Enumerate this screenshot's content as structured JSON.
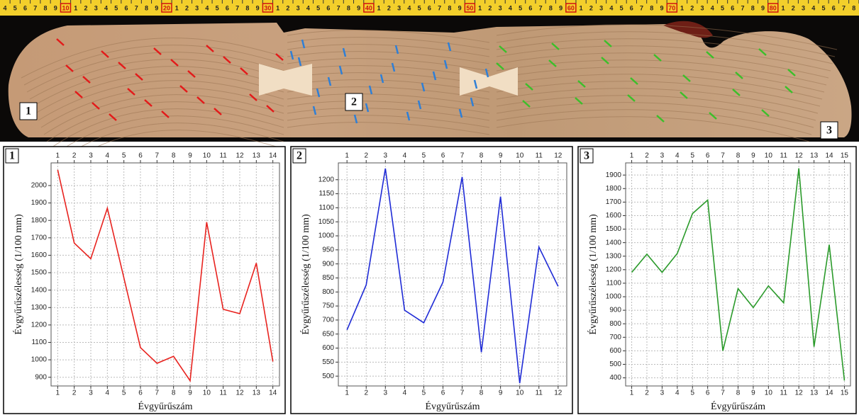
{
  "ruler": [
    4,
    5,
    6,
    7,
    8,
    9,
    10,
    1,
    2,
    3,
    4,
    5,
    6,
    7,
    8,
    9,
    20,
    1,
    2,
    3,
    4,
    5,
    6,
    7,
    8,
    9,
    30,
    1,
    2,
    3,
    4,
    5,
    6,
    7,
    8,
    9,
    40,
    1,
    2,
    3,
    4,
    5,
    6,
    7,
    8,
    9,
    50,
    1,
    2,
    3,
    4,
    5,
    6,
    7,
    8,
    9,
    60,
    1,
    2,
    3,
    4,
    5,
    6,
    7,
    8,
    9,
    70,
    1,
    2,
    3,
    4,
    5,
    6,
    7,
    8,
    9,
    80,
    1,
    2,
    3,
    4,
    5,
    6,
    7,
    8
  ],
  "photo": {
    "labels": [
      "1",
      "2",
      "3"
    ]
  },
  "chart_data": [
    {
      "type": "line",
      "label": "1",
      "xlabel": "Évgyűrűszám",
      "ylabel": "Évgyűrűszélesség (1/100 mm)",
      "color": "#e8231f",
      "x": [
        1,
        2,
        3,
        4,
        5,
        6,
        7,
        8,
        9,
        10,
        11,
        12,
        13,
        14
      ],
      "values": [
        2090,
        1670,
        1580,
        1870,
        1470,
        1070,
        980,
        1020,
        880,
        1790,
        1290,
        1265,
        1555,
        990
      ],
      "xlim": [
        0.6,
        14.4
      ],
      "xticks": [
        1,
        2,
        3,
        4,
        5,
        6,
        7,
        8,
        9,
        10,
        11,
        12,
        13,
        14
      ],
      "ylim": [
        850,
        2130
      ],
      "yticks": [
        900,
        1000,
        1100,
        1200,
        1300,
        1400,
        1500,
        1600,
        1700,
        1800,
        1900,
        2000
      ],
      "grid": true
    },
    {
      "type": "line",
      "label": "2",
      "xlabel": "Évgyűrűszám",
      "ylabel": "Évgyűrűszélesség (1/100 mm)",
      "color": "#1f2bd6",
      "x": [
        1,
        2,
        3,
        4,
        5,
        6,
        7,
        8,
        9,
        10,
        11,
        12
      ],
      "values": [
        665,
        825,
        1240,
        735,
        690,
        835,
        1210,
        585,
        1140,
        475,
        960,
        820
      ],
      "xlim": [
        0.55,
        12.45
      ],
      "xticks": [
        1,
        2,
        3,
        4,
        5,
        6,
        7,
        8,
        9,
        10,
        11,
        12
      ],
      "ylim": [
        465,
        1260
      ],
      "yticks": [
        500,
        550,
        600,
        650,
        700,
        750,
        800,
        850,
        900,
        950,
        1000,
        1050,
        1100,
        1150,
        1200
      ],
      "grid": true
    },
    {
      "type": "line",
      "label": "3",
      "xlabel": "Évgyűrűszám",
      "ylabel": "Évgyűrűszélesség (1/100 mm)",
      "color": "#2a9a2a",
      "x": [
        1,
        2,
        3,
        4,
        5,
        6,
        7,
        8,
        9,
        10,
        11,
        12,
        13,
        14,
        15
      ],
      "values": [
        1180,
        1315,
        1180,
        1320,
        1615,
        1715,
        600,
        1060,
        920,
        1080,
        955,
        1950,
        630,
        1385,
        380
      ],
      "xlim": [
        0.6,
        15.4
      ],
      "xticks": [
        1,
        2,
        3,
        4,
        5,
        6,
        7,
        8,
        9,
        10,
        11,
        12,
        13,
        14,
        15
      ],
      "ylim": [
        340,
        1990
      ],
      "yticks": [
        400,
        500,
        600,
        700,
        800,
        900,
        1000,
        1100,
        1200,
        1300,
        1400,
        1500,
        1600,
        1700,
        1800,
        1900
      ],
      "grid": true
    }
  ]
}
